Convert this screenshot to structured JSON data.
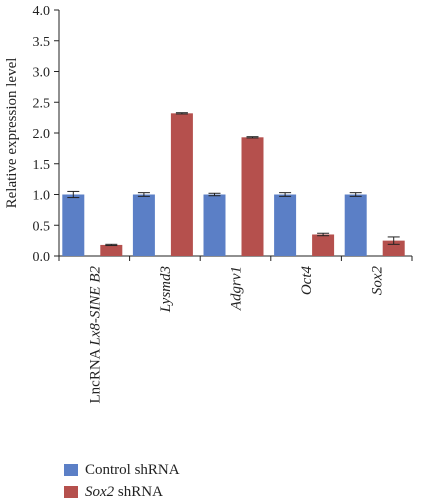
{
  "chart_data": {
    "type": "bar",
    "ylabel": "Relative expression level",
    "ylim": [
      0,
      4.0
    ],
    "yticks": [
      "0.0",
      "0.5",
      "1.0",
      "1.5",
      "2.0",
      "2.5",
      "3.0",
      "3.5",
      "4.0"
    ],
    "categories": [
      {
        "plain": "LncRNA ",
        "italic": "Lx8-SINE B2"
      },
      {
        "plain": "",
        "italic": "Lysmd3"
      },
      {
        "plain": "",
        "italic": "Adgrv1"
      },
      {
        "plain": "",
        "italic": "Oct4"
      },
      {
        "plain": "",
        "italic": "Sox2"
      }
    ],
    "series": [
      {
        "name_italic": "",
        "name_plain": "Control shRNA",
        "color": "#5b7fc6",
        "values": [
          1.0,
          1.0,
          1.0,
          1.0,
          1.0
        ],
        "errors": [
          0.05,
          0.03,
          0.02,
          0.03,
          0.03
        ]
      },
      {
        "name_italic": "Sox2",
        "name_plain": " shRNA",
        "color": "#b5504d",
        "values": [
          0.18,
          2.32,
          1.93,
          0.35,
          0.25
        ],
        "errors": [
          0.01,
          0.01,
          0.01,
          0.02,
          0.06
        ]
      }
    ]
  }
}
